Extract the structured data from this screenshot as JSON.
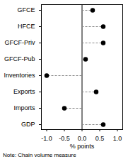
{
  "chart_data": {
    "type": "dot",
    "orientation": "horizontal",
    "categories": [
      "GFCE",
      "HFCE",
      "GFCF-Priv",
      "GFCF-Pub",
      "Inventories",
      "Exports",
      "Imports",
      "GDP"
    ],
    "values": [
      0.3,
      0.6,
      0.6,
      0.1,
      -1.0,
      0.4,
      -0.5,
      0.6
    ],
    "xlim": [
      -1.15,
      1.15
    ],
    "xticks": [
      {
        "value": -1.0,
        "label": "-1.0"
      },
      {
        "value": -0.5,
        "label": "-0.5"
      },
      {
        "value": 0,
        "label": "0.0"
      },
      {
        "value": 0.5,
        "label": "0.5"
      },
      {
        "value": 1.0,
        "label": "1.0"
      }
    ],
    "xlabel": "% points",
    "note": "Note: Chain volume measure",
    "color": "#000000",
    "marker": "circle",
    "line_style": "dashed"
  }
}
